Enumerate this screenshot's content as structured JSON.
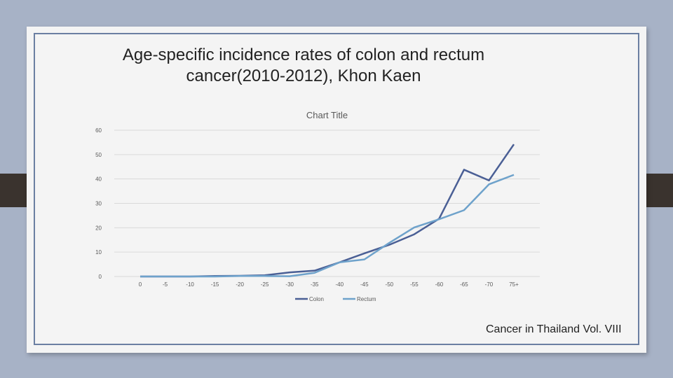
{
  "slide": {
    "title": "Age-specific incidence rates of colon and rectum cancer(2010-2012), Khon Kaen",
    "source": "Cancer in Thailand Vol. VIII"
  },
  "colors": {
    "background": "#a7b2c6",
    "slide": "#f4f4f4",
    "frame": "#6b7fa2",
    "side_tabs": "#3a332e",
    "gridline": "#d9d9d9",
    "colon": "#4a5f95",
    "rectum": "#6ea2cb"
  },
  "chart_data": {
    "type": "line",
    "title": "Chart Title",
    "categories": [
      "0",
      "-5",
      "-10",
      "-15",
      "-20",
      "-25",
      "-30",
      "-35",
      "-40",
      "-45",
      "-50",
      "-55",
      "-60",
      "-65",
      "-70",
      "75+"
    ],
    "series": [
      {
        "name": "Colon",
        "values": [
          0,
          0,
          0,
          0.2,
          0.3,
          0.5,
          1.7,
          2.4,
          5.8,
          9.5,
          13.0,
          17.3,
          23.7,
          43.8,
          39.4,
          54.2
        ]
      },
      {
        "name": "Rectum",
        "values": [
          0,
          0,
          0,
          0,
          0.2,
          0.2,
          0.1,
          1.5,
          5.8,
          7.0,
          13.8,
          20.1,
          23.5,
          27.2,
          37.8,
          41.7
        ]
      }
    ],
    "ylim": [
      0,
      60
    ],
    "yticks": [
      0,
      10,
      20,
      30,
      40,
      50,
      60
    ],
    "grid": true,
    "legend_position": "bottom"
  }
}
